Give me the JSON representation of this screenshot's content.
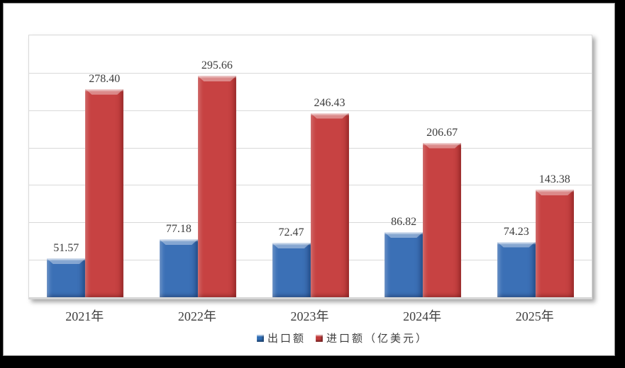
{
  "chart_data": {
    "type": "bar",
    "title": "",
    "categories": [
      "2021年",
      "2022年",
      "2023年",
      "2024年",
      "2025年"
    ],
    "series": [
      {
        "key": "export",
        "name": "出口额",
        "color": "#3b70b6",
        "values": [
          51.57,
          77.18,
          72.47,
          86.82,
          74.23
        ],
        "labels": [
          "51.57",
          "77.18",
          "72.47",
          "86.82",
          "74.23"
        ]
      },
      {
        "key": "import",
        "name": "进口额（亿美元）",
        "color": "#c74242",
        "values": [
          278.4,
          295.66,
          246.43,
          206.67,
          143.38
        ],
        "labels": [
          "278.40",
          "295.66",
          "246.43",
          "206.67",
          "143.38"
        ]
      }
    ],
    "ylim": [
      0,
      350
    ],
    "gridline_step": 50,
    "grid": true,
    "y_axis_labels_visible": false,
    "legend_position": "bottom",
    "legend": [
      "出口额",
      "进口额（亿美元）"
    ],
    "background": "#ffffff",
    "gridline_color": "#d9d9d9"
  }
}
